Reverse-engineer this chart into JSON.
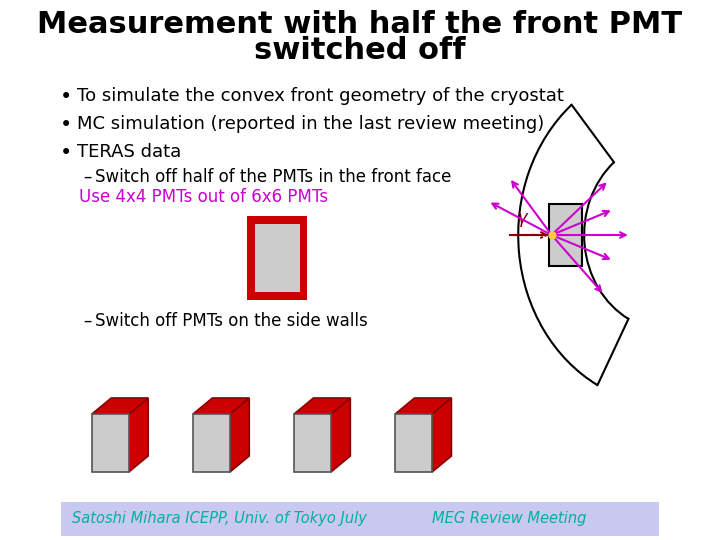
{
  "title_line1": "Measurement with half the front PMT",
  "title_line2": "switched off",
  "title_fontsize": 22,
  "bullet1": "To simulate the convex front geometry of the cryostat",
  "bullet2": "MC simulation (reported in the last review meeting)",
  "bullet3": "TERAS data",
  "sub1": "Switch off half of the PMTs in the front face",
  "sub1_highlight": "Use 4x4 PMTs out of 6x6 PMTs",
  "sub2": "Switch off PMTs on the side walls",
  "footer_left": "Satoshi Mihara ICEPP, Univ. of Tokyo July",
  "footer_right": "MEG Review Meeting",
  "footer_bg": "#c8c8f0",
  "footer_text_color": "#00b0a0",
  "highlight_color": "#cc00cc",
  "red_color": "#cc0000",
  "dark_red": "#880000",
  "gray_color": "#cccccc",
  "bg_color": "#ffffff",
  "text_color": "#000000",
  "mag_color": "#cc00cc",
  "gamma_color": "#880000"
}
